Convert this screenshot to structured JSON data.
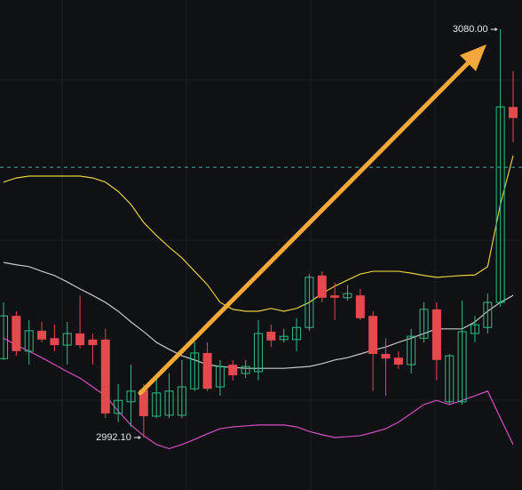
{
  "chart_data": {
    "type": "candlestick",
    "open": [
      3009.1,
      3018.3,
      3010.7,
      3015.1,
      3013.5,
      3012.0,
      3014.5,
      3013.2,
      3013.2,
      2997.3,
      2999.8,
      3002.4,
      2996.7,
      2996.9,
      2996.9,
      3002.6,
      3010.3,
      3003.0,
      3007.8,
      3005.9,
      3006.3,
      3014.9,
      3013.2,
      3013.2,
      3015.8,
      3027.0,
      3022.7,
      3022.2,
      3022.7,
      3018.3,
      3010.1,
      3009.3,
      3007.8,
      3013.5,
      3019.7,
      2999.8,
      2999.8,
      3014.5,
      3015.8,
      3021.2,
      3063.3
    ],
    "high": [
      3021.2,
      3019.3,
      3017.4,
      3017.0,
      3016.4,
      3017.0,
      3022.7,
      3014.5,
      3015.5,
      3003.6,
      3007.8,
      3003.6,
      3004.9,
      3005.9,
      3008.8,
      3012.6,
      3012.6,
      3008.8,
      3008.8,
      3008.8,
      3017.4,
      3016.4,
      3015.5,
      3017.8,
      3027.3,
      3027.9,
      3025.4,
      3025.0,
      3024.1,
      3019.3,
      3013.5,
      3010.7,
      3015.5,
      3021.2,
      3021.2,
      3010.1,
      3021.6,
      3018.3,
      3023.1,
      3080.0,
      3071.0
    ],
    "low": [
      3008.8,
      3009.7,
      3007.8,
      3012.6,
      3010.7,
      3007.8,
      3011.3,
      3007.8,
      2996.3,
      2995.4,
      2994.4,
      2992.1,
      2996.3,
      2996.3,
      2996.3,
      3002.1,
      3002.1,
      3001.1,
      3004.4,
      3004.9,
      3004.4,
      3011.6,
      3012.6,
      3010.7,
      3015.1,
      3021.2,
      3017.4,
      3021.6,
      3017.4,
      3002.1,
      3001.1,
      3006.9,
      3005.9,
      3012.6,
      3004.4,
      2999.2,
      2999.2,
      3012.6,
      3014.5,
      3020.3,
      3055.7
    ],
    "close": [
      3018.3,
      3010.7,
      3015.1,
      3013.2,
      3012.0,
      3014.5,
      3012.0,
      3012.0,
      2997.3,
      3000.1,
      3002.1,
      2996.7,
      3001.7,
      3002.1,
      3003.0,
      3010.3,
      3002.6,
      3007.4,
      3005.5,
      3007.4,
      3014.5,
      3013.0,
      3013.9,
      3015.8,
      3026.6,
      3022.2,
      3022.2,
      3023.1,
      3017.8,
      3010.1,
      3009.1,
      3007.8,
      3013.9,
      3019.7,
      3008.8,
      3009.7,
      3014.9,
      3016.4,
      3021.2,
      3063.3,
      3060.9
    ],
    "up_color": "#2ebd85",
    "down_color": "#e5484d",
    "bands": [
      {
        "color": "#e3cf3f",
        "values": [
          3047.1,
          3048.0,
          3048.4,
          3048.4,
          3048.4,
          3048.4,
          3048.4,
          3048.0,
          3047.1,
          3045.1,
          3042.3,
          3038.4,
          3035.6,
          3033.1,
          3030.8,
          3027.9,
          3025.0,
          3021.2,
          3019.7,
          3019.3,
          3019.3,
          3019.9,
          3019.3,
          3019.9,
          3021.2,
          3023.1,
          3024.7,
          3026.0,
          3027.3,
          3027.9,
          3027.9,
          3027.9,
          3027.5,
          3027.0,
          3026.6,
          3026.8,
          3027.0,
          3027.1,
          3028.9,
          3042.3,
          3052.8
        ]
      },
      {
        "color": "#c8c8c8",
        "values": [
          3029.8,
          3029.3,
          3028.9,
          3027.9,
          3027.0,
          3025.6,
          3024.1,
          3022.7,
          3021.2,
          3019.3,
          3017.0,
          3014.9,
          3012.6,
          3011.1,
          3009.7,
          3008.8,
          3007.8,
          3007.4,
          3007.2,
          3007.0,
          3007.0,
          3007.0,
          3007.0,
          3007.2,
          3007.4,
          3008.0,
          3008.8,
          3009.3,
          3010.1,
          3010.9,
          3011.6,
          3012.6,
          3013.5,
          3014.5,
          3015.5,
          3015.5,
          3015.5,
          3017.0,
          3019.3,
          3021.2,
          3022.7
        ]
      },
      {
        "color": "#d24fc0",
        "values": [
          3013.5,
          3012.0,
          3010.7,
          3009.3,
          3007.8,
          3006.3,
          3004.9,
          3003.0,
          3001.1,
          2997.8,
          2994.8,
          2992.5,
          2990.6,
          2989.7,
          2990.6,
          2991.7,
          2992.9,
          2994.0,
          2994.4,
          2994.6,
          2994.8,
          2994.8,
          2994.8,
          2994.4,
          2993.4,
          2992.7,
          2992.1,
          2992.3,
          2992.5,
          2993.2,
          2994.0,
          2995.4,
          2997.3,
          2999.2,
          3000.1,
          2999.2,
          3000.1,
          3001.1,
          3002.1,
          2996.3,
          2990.6
        ]
      }
    ],
    "price_line": 3050.3,
    "price_line_color": "#3fa8a0",
    "max_label": "3080.00",
    "min_label": "2992.10"
  }
}
